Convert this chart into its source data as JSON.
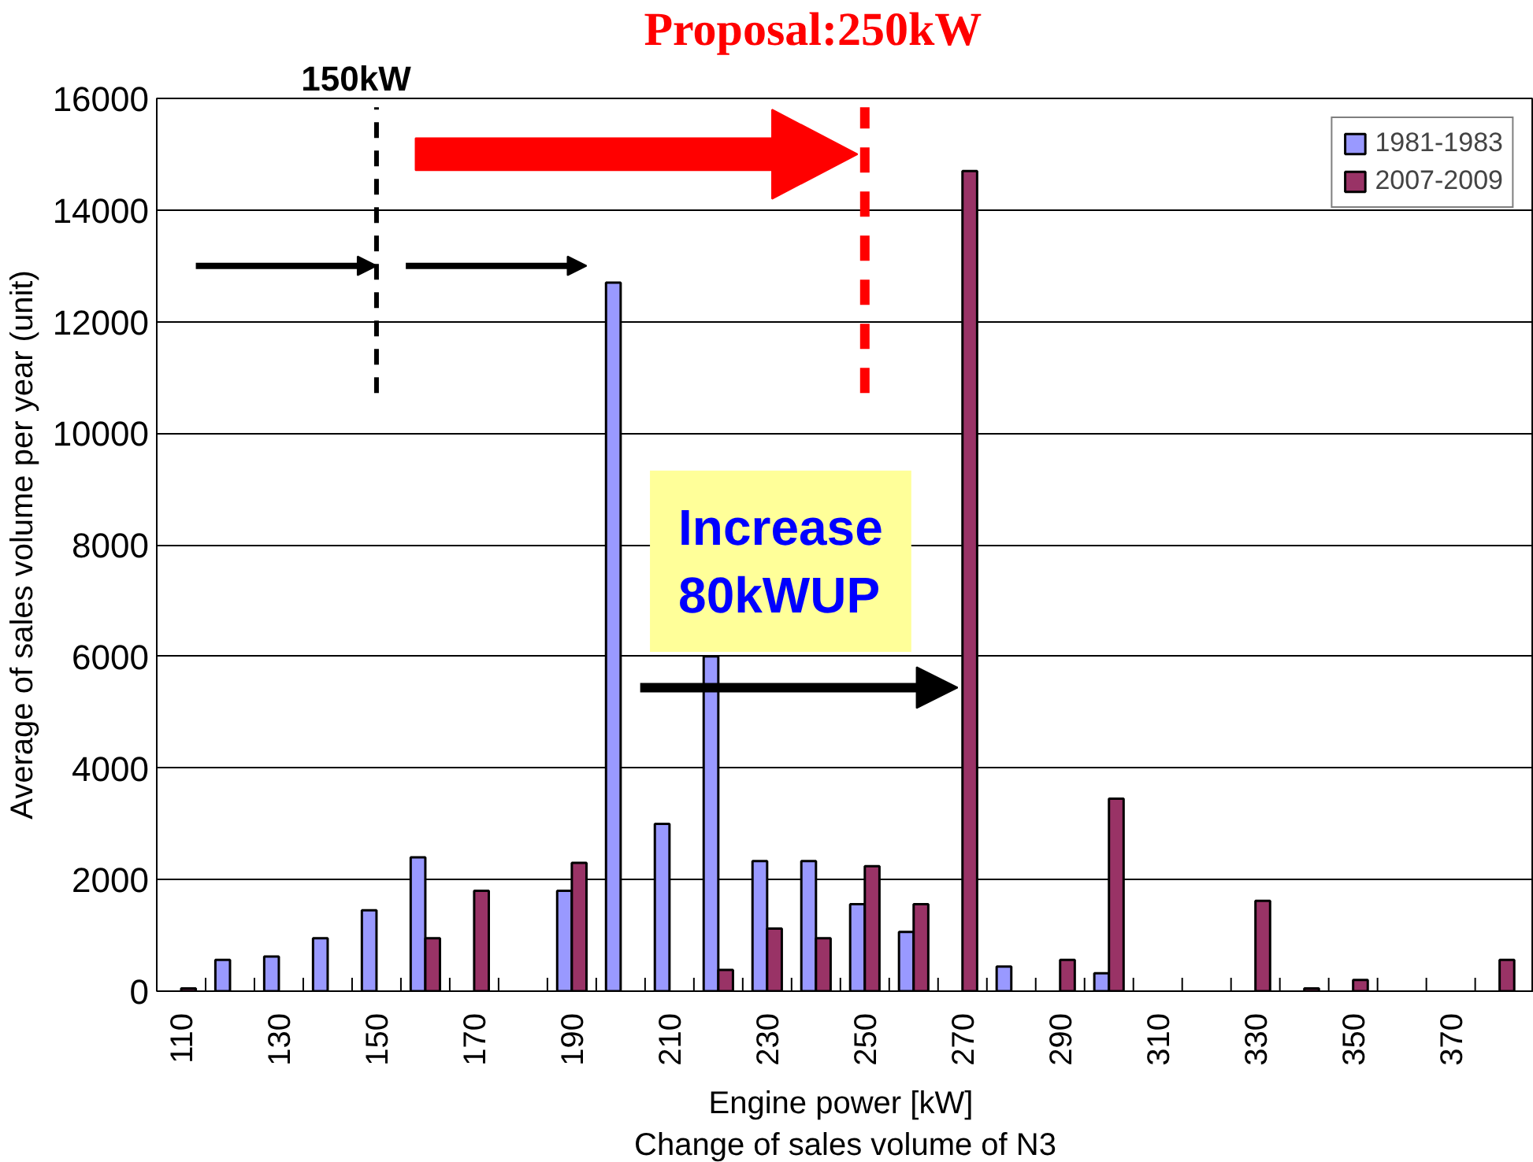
{
  "chart_data": {
    "type": "bar",
    "xlabel": "Engine power  [kW]",
    "ylabel": "Average of sales volume per year (unit)",
    "categories": [
      "110",
      null,
      "130",
      null,
      "150",
      null,
      "170",
      null,
      "190",
      null,
      "210",
      null,
      "230",
      null,
      "250",
      null,
      "270",
      null,
      "290",
      null,
      "310",
      null,
      "330",
      null,
      "350",
      null,
      "370",
      null
    ],
    "series": [
      {
        "name": "1981-1983",
        "color": "#9999ff",
        "values": [
          null,
          560,
          620,
          950,
          1450,
          2400,
          null,
          null,
          1800,
          12700,
          3000,
          6000,
          2330,
          2330,
          1560,
          1060,
          null,
          440,
          null,
          320,
          null,
          null,
          null,
          null,
          null,
          null,
          null,
          null
        ]
      },
      {
        "name": "2007-2009",
        "color": "#993366",
        "values": [
          50,
          null,
          null,
          null,
          null,
          950,
          1800,
          null,
          2300,
          null,
          null,
          380,
          1120,
          950,
          2240,
          1560,
          14700,
          null,
          560,
          3450,
          null,
          null,
          1620,
          50,
          200,
          null,
          null,
          560
        ]
      }
    ],
    "ylim": [
      0,
      16000
    ],
    "yticks": [
      0,
      2000,
      4000,
      6000,
      8000,
      10000,
      12000,
      14000,
      16000
    ],
    "grid": "y",
    "legend": "top right",
    "ref_lines": [
      {
        "axis": "x",
        "value": "150",
        "label": "150kW",
        "color": "#000000",
        "line_style": "dashed"
      },
      {
        "axis": "x",
        "value": "250",
        "label": "Proposal:250kW",
        "color": "#ff0000",
        "line_style": "dashed"
      }
    ],
    "annotations": [
      "Increase\n80kWUP",
      "Change of sales volume of N3"
    ]
  }
}
